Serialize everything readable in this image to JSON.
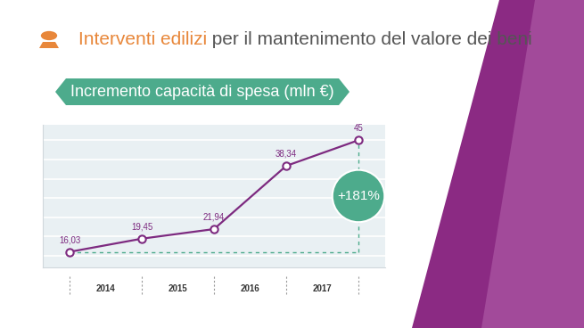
{
  "chart_data": {
    "type": "line",
    "title": "Interventi edilizi per il mantenimento del valore dei beni",
    "title_highlight": "Interventi edilizi",
    "subtitle": "Incremento capacità di spesa (mln €)",
    "categories": [
      "2014",
      "2015",
      "2016",
      "2017",
      null
    ],
    "values": [
      16.03,
      19.45,
      21.94,
      38.34,
      45
    ],
    "value_labels": [
      "16,03",
      "19,45",
      "21,94",
      "38,34",
      "45"
    ],
    "data_labels": true,
    "color": "#7d2a80",
    "marker": "circle",
    "line_style": "solid",
    "ylim": [
      12,
      49
    ],
    "yticks": [
      15,
      20,
      25,
      30,
      35,
      40,
      45
    ],
    "grid": true,
    "tick_labels": "x",
    "annotations": [
      {
        "text": "+181%"
      }
    ]
  }
}
